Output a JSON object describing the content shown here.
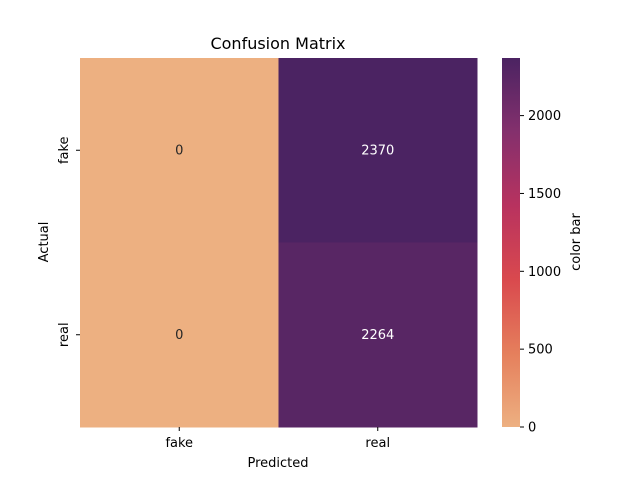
{
  "chart_data": {
    "type": "heatmap",
    "title": "Confusion Matrix",
    "xlabel": "Predicted",
    "ylabel": "Actual",
    "x_categories": [
      "fake",
      "real"
    ],
    "y_categories": [
      "fake",
      "real"
    ],
    "values": [
      [
        0,
        2370
      ],
      [
        0,
        2264
      ]
    ],
    "value_labels": [
      [
        "0",
        "2370"
      ],
      [
        "0",
        "2264"
      ]
    ],
    "colorbar": {
      "label": "color bar",
      "vmin": 0,
      "vmax": 2370,
      "ticks": [
        0,
        500,
        1000,
        1500,
        2000
      ],
      "tick_labels": [
        "0",
        "500",
        "1000",
        "1500",
        "2000"
      ],
      "colormap": "flare",
      "stops": [
        "#edb081",
        "#e57f5c",
        "#d9494e",
        "#b8325f",
        "#84306d",
        "#4b2362"
      ]
    }
  }
}
